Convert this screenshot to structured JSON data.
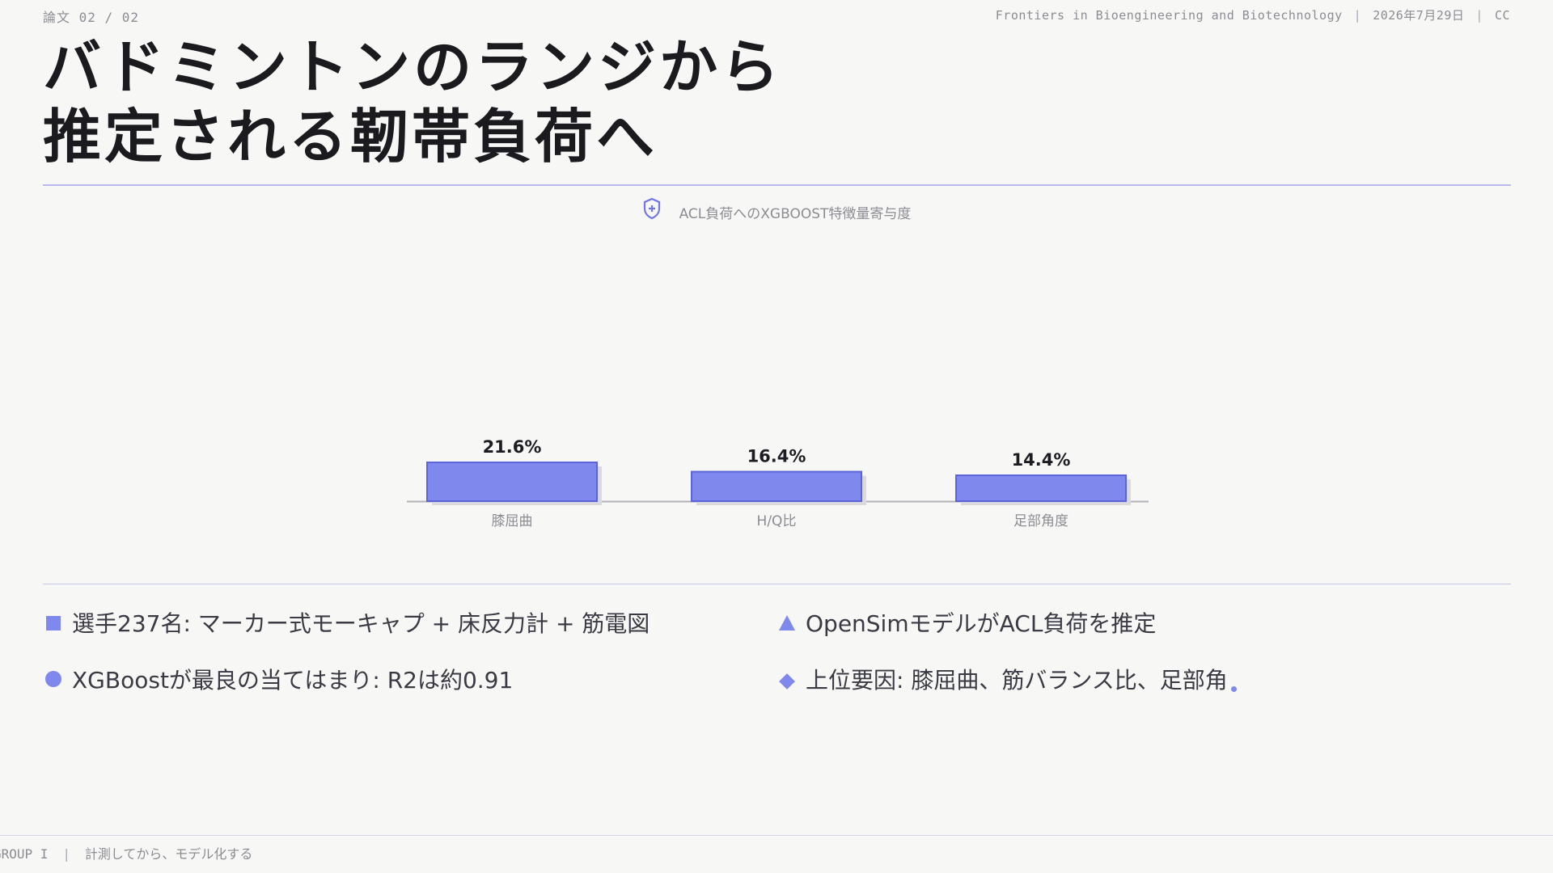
{
  "header": {
    "page_label": "論文 02 / 02",
    "journal": "Frontiers in Bioengineering and Biotechnology",
    "date": "2026年7月29日",
    "license": "CC",
    "separator": "|"
  },
  "title": {
    "line1": "バドミントンのランジから",
    "line2": "推定される靭帯負荷へ"
  },
  "chart": {
    "title": "ACL負荷へのXGBOOST特徴量寄与度",
    "badge_icon": "shield-plus-icon"
  },
  "chart_data": {
    "type": "bar",
    "title": "ACL負荷へのXGBOOST特徴量寄与度",
    "categories": [
      "膝屈曲",
      "H/Q比",
      "足部角度"
    ],
    "values": [
      21.6,
      16.4,
      14.4
    ],
    "value_labels": [
      "21.6%",
      "16.4%",
      "14.4%"
    ],
    "unit": "%",
    "xlabel": "",
    "ylabel": "",
    "grid": false,
    "legend": "none",
    "bar_color": "#7f88ec",
    "bar_border": "#5a63d8"
  },
  "bullets": [
    {
      "marker": "square",
      "text": "選手237名: マーカー式モーキャプ + 床反力計 + 筋電図"
    },
    {
      "marker": "triangle",
      "text": "OpenSimモデルがACL負荷を推定"
    },
    {
      "marker": "circle",
      "text": "XGBoostが最良の当てはまり: R2は約0.91"
    },
    {
      "marker": "diamond",
      "text": "上位要因: 膝屈曲、筋バランス比、足部角"
    }
  ],
  "footer": {
    "group": "GROUP I",
    "separator": "|",
    "tagline": "計測してから、モデル化する"
  },
  "colors": {
    "accent": "#7f88ec",
    "rule": "#b8b9ec",
    "muted_text": "#8c8c94"
  }
}
